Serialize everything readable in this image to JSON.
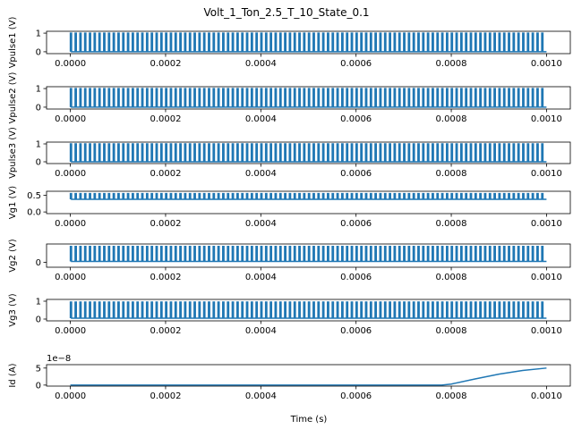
{
  "chart_data": {
    "type": "line",
    "title": "Volt_1_Ton_2.5_T_10_State_0.1",
    "xlabel": "Time (s)",
    "xlim": [
      -5e-05,
      0.00105
    ],
    "x_ticks": [
      "0.0000",
      "0.0002",
      "0.0004",
      "0.0006",
      "0.0008",
      "0.0010"
    ],
    "x_tick_values": [
      0,
      0.0002,
      0.0004,
      0.0006,
      0.0008,
      0.001
    ],
    "line_color": "#1f77b4",
    "grid": false,
    "legend": "none",
    "panels": [
      {
        "name": "vpulse1",
        "ylabel": "Vpulse1 (V)",
        "ylim": [
          -0.1,
          1.1
        ],
        "y_ticks": [
          "0",
          "1"
        ],
        "y_tick_values": [
          0,
          1
        ],
        "kind": "pulse",
        "period": 1e-05,
        "duty": 0.25,
        "low": 0,
        "high": 1
      },
      {
        "name": "vpulse2",
        "ylabel": "Vpulse2 (V)",
        "ylim": [
          -0.1,
          1.1
        ],
        "y_ticks": [
          "0",
          "1"
        ],
        "y_tick_values": [
          0,
          1
        ],
        "kind": "pulse",
        "period": 1e-05,
        "duty": 0.25,
        "low": 0,
        "high": 1
      },
      {
        "name": "vpulse3",
        "ylabel": "Vpulse3 (V)",
        "ylim": [
          -0.1,
          1.1
        ],
        "y_ticks": [
          "0",
          "1"
        ],
        "y_tick_values": [
          0,
          1
        ],
        "kind": "pulse",
        "period": 1e-05,
        "duty": 0.25,
        "low": 0,
        "high": 1
      },
      {
        "name": "vg1",
        "ylabel": "Vg1 (V)",
        "ylim": [
          -0.05,
          0.62
        ],
        "y_ticks": [
          "0.0",
          "0.5"
        ],
        "y_tick_values": [
          0,
          0.5
        ],
        "kind": "pulse",
        "period": 1e-05,
        "duty": 0.25,
        "low": 0.38,
        "high": 0.55
      },
      {
        "name": "vg2",
        "ylabel": "Vg2 (V)",
        "ylim": [
          -0.3,
          1.1
        ],
        "y_ticks": [
          "0"
        ],
        "y_tick_values": [
          0
        ],
        "kind": "pulse",
        "period": 1e-05,
        "duty": 0.25,
        "low": 0.05,
        "high": 0.95
      },
      {
        "name": "vg3",
        "ylabel": "Vg3 (V)",
        "ylim": [
          -0.1,
          1.1
        ],
        "y_ticks": [
          "0",
          "1"
        ],
        "y_tick_values": [
          0,
          1
        ],
        "kind": "pulse",
        "period": 1e-05,
        "duty": 0.25,
        "low": 0.05,
        "high": 0.95
      },
      {
        "name": "id",
        "ylabel": "Id (A)",
        "ylim": [
          -0.3,
          6
        ],
        "y_ticks": [
          "0",
          "5"
        ],
        "y_tick_values": [
          0,
          5
        ],
        "offset_label": "1e−8",
        "kind": "rise",
        "x": [
          0,
          0.00078,
          0.0008,
          0.00085,
          0.0009,
          0.00095,
          0.001
        ],
        "y": [
          0,
          0,
          0.3,
          1.8,
          3.2,
          4.3,
          5.0
        ]
      }
    ]
  }
}
